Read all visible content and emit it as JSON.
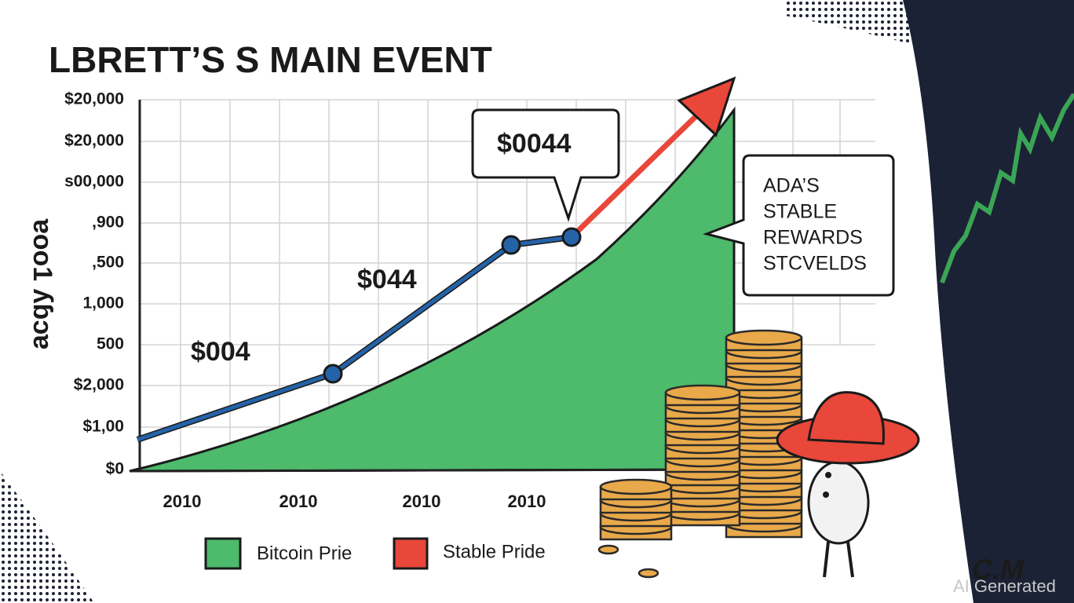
{
  "title": "LBRETT’S S MAIN EVENT",
  "y_axis_title": "ɐoo1 ʎɓɔɐ",
  "y_axis_labels": [
    "$20,000",
    "$20,000",
    "s00,000",
    ",900",
    ",500",
    "1,000",
    "500",
    "$2,000",
    "$1,00",
    "$0"
  ],
  "x_axis_labels": [
    "2010",
    "2010",
    "2010",
    "2010"
  ],
  "annotations": [
    "$004",
    "$044",
    "$0044"
  ],
  "callout": [
    "ADA’S",
    "STABLE",
    "REWARDS",
    "STCVELDS"
  ],
  "legend": [
    "Bitcoin Prie",
    "Stable Pride"
  ],
  "logo": "C.M",
  "watermark": "AI Generated"
}
